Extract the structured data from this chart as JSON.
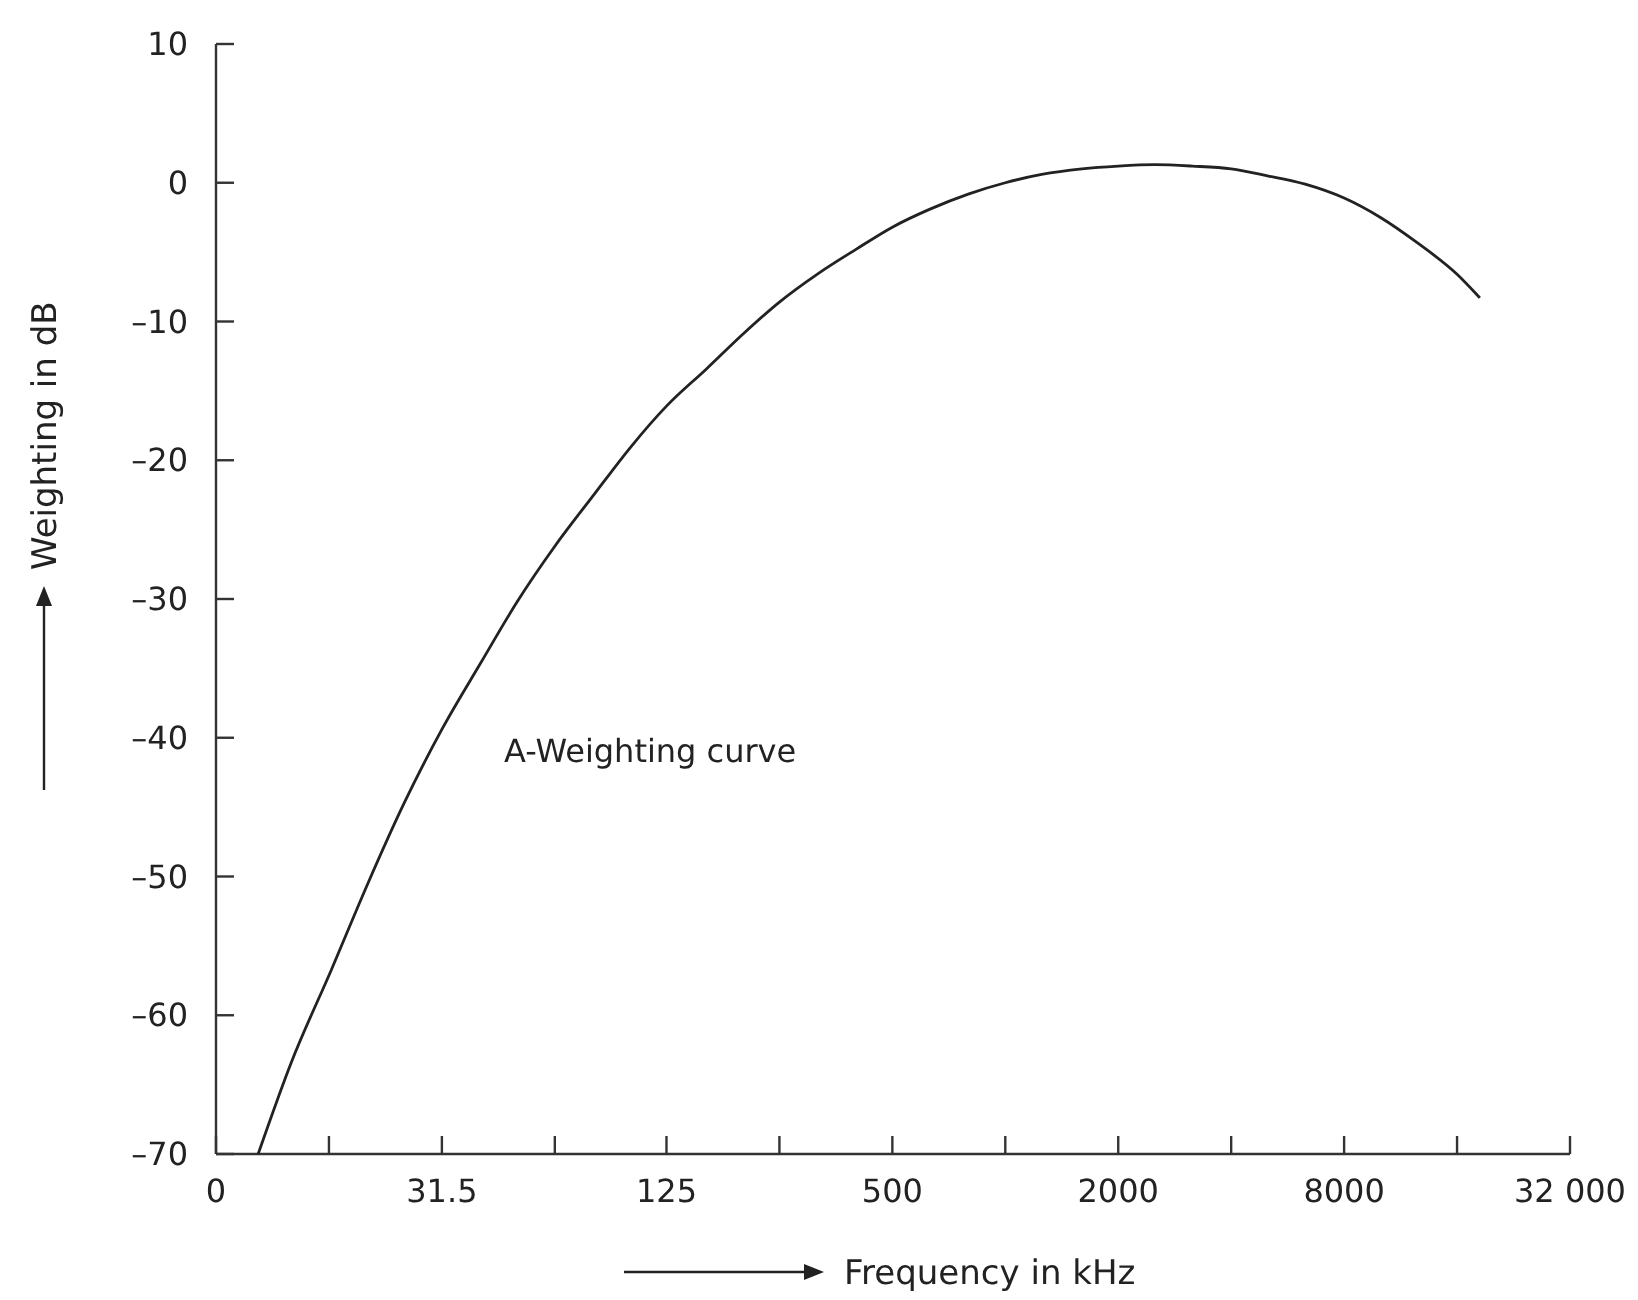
{
  "chart_data": {
    "type": "line",
    "xlabel": "Frequency in kHz",
    "ylabel": "Weighting in dB",
    "annotations": [
      "A-Weighting curve"
    ],
    "log": "x",
    "grid": false,
    "marker": "none",
    "line_style": "solid",
    "xlim": [
      0,
      32000
    ],
    "xticks": [
      0,
      {
        "value": 15.75,
        "label": null
      },
      31.5,
      {
        "value": 63,
        "label": null
      },
      125,
      {
        "value": 250,
        "label": null
      },
      500,
      {
        "value": 1000,
        "label": null
      },
      2000,
      {
        "value": 4000,
        "label": null
      },
      8000,
      {
        "value": 16000,
        "label": null
      },
      {
        "value": 32000,
        "label": "32 000"
      }
    ],
    "ylim": [
      -70,
      10
    ],
    "yticks": [
      10,
      0,
      {
        "value": -10,
        "label": "–10"
      },
      {
        "value": -20,
        "label": "–20"
      },
      {
        "value": -30,
        "label": "–30"
      },
      {
        "value": -40,
        "label": "–40"
      },
      {
        "value": -50,
        "label": "–50"
      },
      {
        "value": -60,
        "label": "–60"
      },
      {
        "value": -70,
        "label": "–70"
      }
    ],
    "series": [
      {
        "color": "#222222",
        "x": [
          10.2,
          12.5,
          16,
          20,
          25,
          31.5,
          40,
          50,
          63,
          80,
          100,
          125,
          160,
          200,
          250,
          315,
          400,
          500,
          630,
          800,
          1000,
          1250,
          1600,
          2000,
          2500,
          3150,
          4000,
          5000,
          6300,
          8000,
          10000,
          12500,
          16000,
          18400
        ],
        "values": [
          -70,
          -63.4,
          -56.7,
          -50.5,
          -44.7,
          -39.4,
          -34.6,
          -30.2,
          -26.2,
          -22.5,
          -19.1,
          -16.1,
          -13.4,
          -10.9,
          -8.6,
          -6.6,
          -4.8,
          -3.2,
          -1.9,
          -0.8,
          0,
          0.6,
          1.0,
          1.2,
          1.3,
          1.2,
          1.0,
          0.5,
          -0.1,
          -1.1,
          -2.5,
          -4.3,
          -6.6,
          -8.3
        ]
      }
    ]
  }
}
